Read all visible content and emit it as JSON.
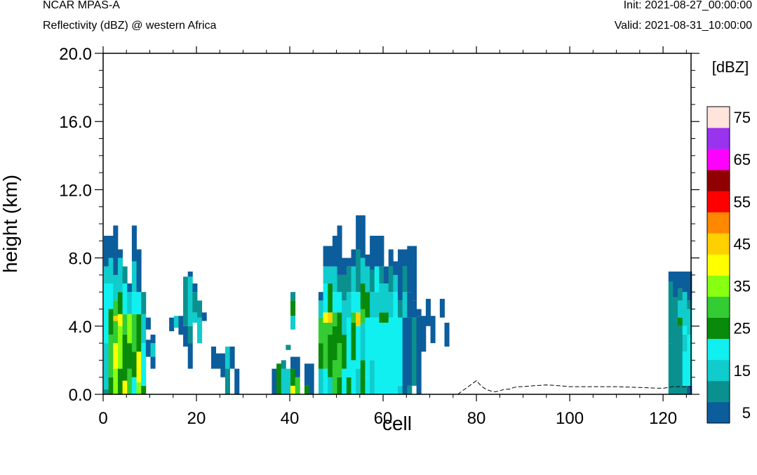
{
  "header": {
    "model": "NCAR MPAS-A",
    "field": "Reflectivity (dBZ) @ western Africa",
    "init": "Init: 2021-08-27_00:00:00",
    "valid": "Valid: 2021-08-31_10:00:00"
  },
  "colors": {
    "palette": [
      "#0c5d9c",
      "#0b9090",
      "#10cccc",
      "#10f0f0",
      "#0a8a0a",
      "#33cc33",
      "#88ff11",
      "#ffff00",
      "#ffd000",
      "#ff8800",
      "#ff0000",
      "#900000",
      "#ff00ff",
      "#9933ee",
      "#ffe4dc"
    ],
    "terrain_line": "#000000"
  },
  "chart_data": {
    "type": "heatmap",
    "xlabel": "cell",
    "ylabel": "height (km)",
    "xlim": [
      0,
      126
    ],
    "ylim": [
      0,
      20
    ],
    "x_ticks": [
      "0",
      "20",
      "40",
      "60",
      "80",
      "100",
      "120"
    ],
    "y_ticks": [
      "0.0",
      "4.0",
      "8.0",
      "12.0",
      "16.0",
      "20.0"
    ],
    "colorbar": {
      "title": "[dBZ]",
      "labels": [
        "5",
        "15",
        "25",
        "35",
        "45",
        "55",
        "65",
        "75"
      ],
      "levels": [
        5,
        10,
        15,
        20,
        25,
        30,
        35,
        40,
        45,
        50,
        55,
        60,
        65,
        70,
        75
      ]
    },
    "cells_note": "each column [cell index, from_km, to_km, dBZ]",
    "cells": [
      [
        0,
        0,
        0.3,
        10
      ],
      [
        0,
        0.3,
        3,
        15
      ],
      [
        0,
        3,
        6.5,
        20
      ],
      [
        0,
        6.5,
        7.5,
        15
      ],
      [
        0,
        7.5,
        9.3,
        5
      ],
      [
        1,
        0,
        1,
        25
      ],
      [
        1,
        1,
        3.5,
        30
      ],
      [
        1,
        3.5,
        5,
        25
      ],
      [
        1,
        5,
        6.5,
        20
      ],
      [
        1,
        6.5,
        8,
        15
      ],
      [
        1,
        8,
        9.3,
        5
      ],
      [
        2,
        0,
        1.5,
        35
      ],
      [
        2,
        1.5,
        3,
        40
      ],
      [
        2,
        3,
        4.3,
        30
      ],
      [
        2,
        4.3,
        4.6,
        45
      ],
      [
        2,
        4.6,
        5.5,
        30
      ],
      [
        2,
        5.5,
        7,
        15
      ],
      [
        2,
        7,
        9.9,
        5
      ],
      [
        3,
        0,
        1.5,
        25
      ],
      [
        3,
        1.5,
        4,
        35
      ],
      [
        3,
        4,
        4.7,
        40
      ],
      [
        3,
        4.7,
        6,
        25
      ],
      [
        3,
        6,
        8,
        15
      ],
      [
        3,
        8,
        8.5,
        5
      ],
      [
        4,
        0,
        0.8,
        40
      ],
      [
        4,
        0.8,
        3.5,
        25
      ],
      [
        4,
        3.5,
        4.7,
        30
      ],
      [
        4,
        4.7,
        6.5,
        20
      ],
      [
        4,
        6.5,
        7.5,
        10
      ],
      [
        5,
        0,
        1.5,
        30
      ],
      [
        5,
        1.5,
        3,
        25
      ],
      [
        5,
        3,
        4.7,
        35
      ],
      [
        5,
        4.7,
        6,
        15
      ],
      [
        5,
        6,
        6.5,
        5
      ],
      [
        6,
        0,
        1,
        20
      ],
      [
        6,
        1,
        2.5,
        25
      ],
      [
        6,
        2.5,
        4.7,
        30
      ],
      [
        6,
        4.7,
        6,
        20
      ],
      [
        6,
        6,
        7.8,
        15
      ],
      [
        6,
        7.8,
        9.9,
        5
      ],
      [
        7,
        0,
        0.7,
        35
      ],
      [
        7,
        0.7,
        2.5,
        40
      ],
      [
        7,
        2.5,
        4.7,
        25
      ],
      [
        7,
        4.7,
        6,
        20
      ],
      [
        7,
        6,
        8.5,
        5
      ],
      [
        8,
        0,
        0.5,
        25
      ],
      [
        8,
        0.5,
        3,
        20
      ],
      [
        8,
        3,
        4.7,
        15
      ],
      [
        8,
        4.7,
        6,
        10
      ],
      [
        9,
        2.2,
        3.2,
        5
      ],
      [
        9,
        3.8,
        4.5,
        5
      ],
      [
        10,
        1.5,
        2.2,
        5
      ],
      [
        10,
        2.2,
        3,
        15
      ],
      [
        10,
        3,
        3.5,
        5
      ],
      [
        14,
        3.7,
        4.5,
        5
      ],
      [
        15,
        3.9,
        4.6,
        15
      ],
      [
        16,
        3.5,
        4.6,
        5
      ],
      [
        17,
        2.8,
        4,
        5
      ],
      [
        17,
        4,
        6.9,
        10
      ],
      [
        18,
        0,
        0.3,
        0
      ],
      [
        18,
        1.5,
        3,
        5
      ],
      [
        18,
        3,
        4,
        10
      ],
      [
        18,
        4,
        6.9,
        15
      ],
      [
        18,
        6.9,
        7.2,
        5
      ],
      [
        19,
        4.2,
        4.8,
        15
      ],
      [
        19,
        4.8,
        6,
        10
      ],
      [
        19,
        6,
        6.5,
        5
      ],
      [
        20,
        3,
        4.5,
        15
      ],
      [
        20,
        4.5,
        5.5,
        10
      ],
      [
        21,
        4.3,
        4.8,
        5
      ],
      [
        23,
        1.5,
        2.8,
        5
      ],
      [
        24,
        1.5,
        2.4,
        5
      ],
      [
        25,
        1,
        2.4,
        5
      ],
      [
        26,
        0,
        1.5,
        10
      ],
      [
        26,
        1.5,
        2.8,
        15
      ],
      [
        27,
        1.5,
        2.8,
        5
      ],
      [
        28,
        0,
        1.5,
        5
      ],
      [
        36,
        0,
        1.5,
        5
      ],
      [
        37,
        0,
        1.8,
        25
      ],
      [
        38,
        0,
        1.5,
        15
      ],
      [
        38,
        1.5,
        2,
        10
      ],
      [
        39,
        0,
        1.5,
        15
      ],
      [
        39,
        2.6,
        2.9,
        10
      ],
      [
        40,
        0,
        0.5,
        40
      ],
      [
        40,
        0.5,
        1.5,
        25
      ],
      [
        40,
        1.5,
        2.2,
        5
      ],
      [
        40,
        3.8,
        4.6,
        15
      ],
      [
        40,
        4.6,
        5.5,
        25
      ],
      [
        40,
        5.5,
        6,
        10
      ],
      [
        41,
        0,
        1,
        30
      ],
      [
        41,
        1,
        2.2,
        5
      ],
      [
        43,
        0,
        0.5,
        25
      ],
      [
        43,
        0.5,
        1.8,
        5
      ],
      [
        44,
        0,
        1.8,
        5
      ],
      [
        46,
        0,
        1.5,
        15
      ],
      [
        46,
        1.5,
        3,
        25
      ],
      [
        46,
        3,
        4.5,
        30
      ],
      [
        46,
        4.5,
        5.5,
        15
      ],
      [
        46,
        5.5,
        6,
        5
      ],
      [
        47,
        0,
        1.5,
        20
      ],
      [
        47,
        1.5,
        4.2,
        30
      ],
      [
        47,
        4.2,
        4.8,
        40
      ],
      [
        47,
        4.8,
        6.5,
        20
      ],
      [
        47,
        6.5,
        7.5,
        15
      ],
      [
        47,
        7.5,
        8.7,
        5
      ],
      [
        48,
        0,
        1,
        15
      ],
      [
        48,
        1,
        3.5,
        25
      ],
      [
        48,
        3.5,
        4.2,
        30
      ],
      [
        48,
        4.2,
        4.8,
        45
      ],
      [
        48,
        4.8,
        6.5,
        25
      ],
      [
        48,
        6.5,
        7.5,
        15
      ],
      [
        48,
        7.5,
        8.7,
        5
      ],
      [
        49,
        0,
        2,
        30
      ],
      [
        49,
        2,
        4,
        25
      ],
      [
        49,
        4,
        4.8,
        30
      ],
      [
        49,
        4.8,
        6,
        20
      ],
      [
        49,
        6,
        7.5,
        15
      ],
      [
        49,
        7.5,
        9.3,
        5
      ],
      [
        50,
        0,
        1,
        25
      ],
      [
        50,
        1,
        3,
        30
      ],
      [
        50,
        3,
        4.8,
        25
      ],
      [
        50,
        4.8,
        6,
        20
      ],
      [
        50,
        6,
        7,
        10
      ],
      [
        50,
        7,
        9.9,
        5
      ],
      [
        51,
        0,
        1.5,
        20
      ],
      [
        51,
        1.5,
        3.5,
        25
      ],
      [
        51,
        3.5,
        5.5,
        15
      ],
      [
        51,
        5.5,
        7,
        10
      ],
      [
        51,
        7,
        8,
        5
      ],
      [
        52,
        0,
        1,
        25
      ],
      [
        52,
        1,
        4.5,
        20
      ],
      [
        52,
        4.5,
        6,
        15
      ],
      [
        52,
        6,
        7.5,
        10
      ],
      [
        52,
        7.5,
        8,
        5
      ],
      [
        53,
        0,
        2,
        20
      ],
      [
        53,
        2,
        4.2,
        25
      ],
      [
        53,
        4.2,
        4.8,
        30
      ],
      [
        53,
        4.8,
        6,
        20
      ],
      [
        53,
        6,
        7.5,
        15
      ],
      [
        53,
        7.5,
        8.5,
        5
      ],
      [
        54,
        0,
        1.5,
        15
      ],
      [
        54,
        1.5,
        4,
        20
      ],
      [
        54,
        4,
        4.8,
        45
      ],
      [
        54,
        4.8,
        6,
        20
      ],
      [
        54,
        6,
        8.5,
        10
      ],
      [
        54,
        8.5,
        10.5,
        5
      ],
      [
        55,
        0,
        2,
        25
      ],
      [
        55,
        2,
        4.2,
        15
      ],
      [
        55,
        4.2,
        5,
        30
      ],
      [
        55,
        5,
        6.5,
        25
      ],
      [
        55,
        6.5,
        8,
        15
      ],
      [
        55,
        8,
        10.5,
        5
      ],
      [
        56,
        0,
        1,
        20
      ],
      [
        56,
        1,
        4.5,
        20
      ],
      [
        56,
        4.5,
        6,
        25
      ],
      [
        56,
        6,
        7.5,
        15
      ],
      [
        56,
        7.5,
        8.2,
        5
      ],
      [
        57,
        0,
        2,
        15
      ],
      [
        57,
        2,
        4.5,
        20
      ],
      [
        57,
        4.5,
        6,
        15
      ],
      [
        57,
        6,
        7.3,
        10
      ],
      [
        57,
        7.3,
        9.3,
        5
      ],
      [
        58,
        0,
        3,
        20
      ],
      [
        58,
        3,
        4.5,
        20
      ],
      [
        58,
        4.5,
        6,
        15
      ],
      [
        58,
        6,
        7.5,
        20
      ],
      [
        58,
        7.5,
        9.3,
        5
      ],
      [
        59,
        0,
        4.2,
        20
      ],
      [
        59,
        4.2,
        4.8,
        25
      ],
      [
        59,
        4.8,
        6.5,
        15
      ],
      [
        59,
        6.5,
        7.5,
        10
      ],
      [
        59,
        7.5,
        9.3,
        5
      ],
      [
        60,
        0,
        4.2,
        20
      ],
      [
        60,
        4.2,
        4.8,
        25
      ],
      [
        60,
        4.8,
        6.5,
        15
      ],
      [
        60,
        6.5,
        7.5,
        5
      ],
      [
        61,
        0,
        4.5,
        20
      ],
      [
        61,
        4.5,
        6,
        15
      ],
      [
        61,
        6,
        7.5,
        10
      ],
      [
        61,
        7.5,
        8.5,
        5
      ],
      [
        62,
        0,
        4.5,
        20
      ],
      [
        62,
        4.5,
        6,
        20
      ],
      [
        62,
        6,
        7,
        15
      ],
      [
        62,
        7,
        7.8,
        5
      ],
      [
        63,
        0,
        0.5,
        15
      ],
      [
        63,
        0.5,
        4.5,
        20
      ],
      [
        63,
        4.5,
        5.5,
        10
      ],
      [
        63,
        5.5,
        8.5,
        5
      ],
      [
        64,
        0,
        4.5,
        5
      ],
      [
        64,
        4.5,
        6,
        15
      ],
      [
        64,
        6,
        7.5,
        10
      ],
      [
        64,
        7.5,
        8.5,
        5
      ],
      [
        65,
        0,
        0.5,
        10
      ],
      [
        65,
        0.5,
        4.5,
        5
      ],
      [
        65,
        4.5,
        6,
        5
      ],
      [
        65,
        6,
        8.7,
        5
      ],
      [
        66,
        0.5,
        4.5,
        10
      ],
      [
        66,
        4.5,
        5.5,
        5
      ],
      [
        66,
        5.5,
        8.7,
        5
      ],
      [
        67,
        0,
        4.6,
        5
      ],
      [
        67,
        4.6,
        5,
        5
      ],
      [
        68,
        2.5,
        4.6,
        5
      ],
      [
        69,
        4,
        5.6,
        5
      ],
      [
        70,
        3,
        4.6,
        5
      ],
      [
        72,
        4.5,
        5.6,
        5
      ],
      [
        73,
        2.8,
        4.2,
        5
      ],
      [
        121,
        0,
        3,
        10
      ],
      [
        121,
        3,
        6.6,
        10
      ],
      [
        121,
        6.6,
        7.2,
        5
      ],
      [
        122,
        0,
        5.7,
        10
      ],
      [
        122,
        5.7,
        7.2,
        5
      ],
      [
        123,
        0,
        1.5,
        10
      ],
      [
        123,
        1.5,
        4,
        10
      ],
      [
        123,
        4,
        4.5,
        25
      ],
      [
        123,
        4.5,
        5.5,
        15
      ],
      [
        123,
        5.5,
        6.2,
        10
      ],
      [
        123,
        6.2,
        7.2,
        5
      ],
      [
        124,
        0,
        0.5,
        10
      ],
      [
        124,
        0.5,
        2.5,
        20
      ],
      [
        124,
        2.5,
        3.5,
        15
      ],
      [
        124,
        3.5,
        4,
        20
      ],
      [
        124,
        4,
        6,
        15
      ],
      [
        124,
        6,
        7.2,
        5
      ],
      [
        125,
        0,
        0.5,
        5
      ],
      [
        125,
        0.5,
        3.5,
        20
      ],
      [
        125,
        3.5,
        5,
        15
      ],
      [
        125,
        5,
        5.5,
        10
      ],
      [
        125,
        5.5,
        7.2,
        5
      ]
    ],
    "terrain": [
      [
        76,
        0
      ],
      [
        77,
        0.2
      ],
      [
        78,
        0.4
      ],
      [
        79,
        0.6
      ],
      [
        80,
        0.8
      ],
      [
        81,
        0.5
      ],
      [
        82,
        0.3
      ],
      [
        83,
        0.2
      ],
      [
        84,
        0.15
      ],
      [
        85,
        0.2
      ],
      [
        86,
        0.3
      ],
      [
        87,
        0.3
      ],
      [
        88,
        0.4
      ],
      [
        89,
        0.45
      ],
      [
        90,
        0.45
      ],
      [
        92,
        0.5
      ],
      [
        95,
        0.55
      ],
      [
        98,
        0.5
      ],
      [
        100,
        0.45
      ],
      [
        105,
        0.45
      ],
      [
        110,
        0.45
      ],
      [
        115,
        0.4
      ],
      [
        120,
        0.35
      ],
      [
        121,
        0.4
      ],
      [
        122,
        0.45
      ],
      [
        124,
        0.45
      ],
      [
        126,
        0.45
      ]
    ]
  }
}
